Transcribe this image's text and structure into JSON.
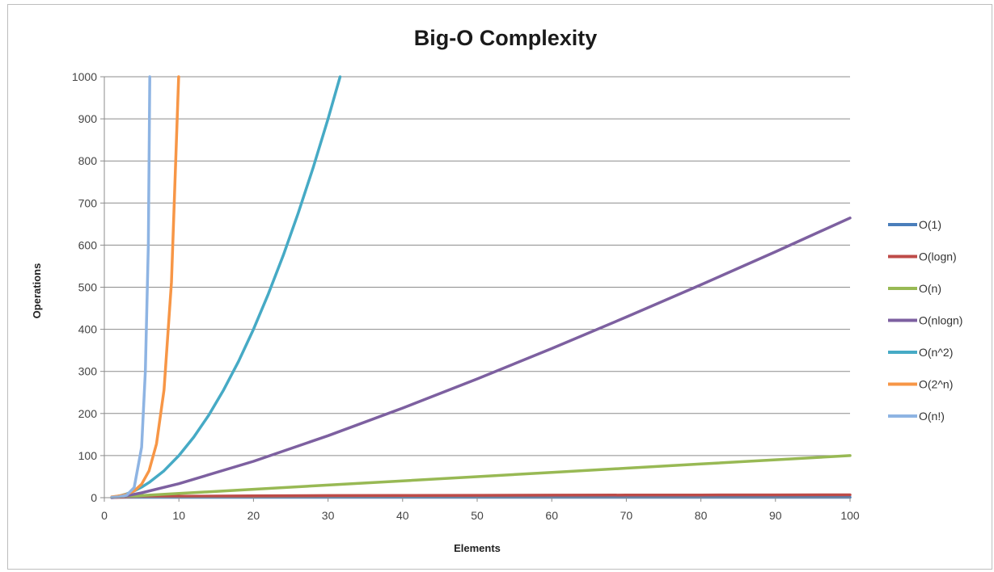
{
  "chart_data": {
    "type": "line",
    "title": "Big-O Complexity",
    "xlabel": "Elements",
    "ylabel": "Operations",
    "xlim": [
      0,
      100
    ],
    "ylim": [
      0,
      1000
    ],
    "x_ticks": [
      "0",
      "10",
      "20",
      "30",
      "40",
      "50",
      "60",
      "70",
      "80",
      "90",
      "100"
    ],
    "y_ticks": [
      "0",
      "100",
      "200",
      "300",
      "400",
      "500",
      "600",
      "700",
      "800",
      "900",
      "1000"
    ],
    "grid": "horizontal",
    "legend_position": "right",
    "series": [
      {
        "name": "O(1)",
        "color": "#4a7ebb",
        "x": [
          1,
          2,
          3,
          4,
          5,
          10,
          20,
          30,
          40,
          50,
          60,
          70,
          80,
          90,
          100
        ],
        "values": [
          1,
          1,
          1,
          1,
          1,
          1,
          1,
          1,
          1,
          1,
          1,
          1,
          1,
          1,
          1
        ]
      },
      {
        "name": "O(logn)",
        "color": "#be4b48",
        "x": [
          1,
          2,
          3,
          4,
          5,
          10,
          20,
          30,
          40,
          50,
          60,
          70,
          80,
          90,
          100
        ],
        "values": [
          0,
          1,
          1.58,
          2,
          2.32,
          3.32,
          4.32,
          4.91,
          5.32,
          5.64,
          5.91,
          6.13,
          6.32,
          6.49,
          6.64
        ]
      },
      {
        "name": "O(n)",
        "color": "#98b954",
        "x": [
          1,
          2,
          3,
          4,
          5,
          10,
          20,
          30,
          40,
          50,
          60,
          70,
          80,
          90,
          100
        ],
        "values": [
          1,
          2,
          3,
          4,
          5,
          10,
          20,
          30,
          40,
          50,
          60,
          70,
          80,
          90,
          100
        ]
      },
      {
        "name": "O(nlogn)",
        "color": "#7d60a0",
        "x": [
          1,
          2,
          3,
          4,
          5,
          10,
          20,
          30,
          40,
          50,
          60,
          70,
          80,
          90,
          100
        ],
        "values": [
          0,
          2,
          4.75,
          8,
          11.6,
          33.2,
          86.4,
          147.2,
          212.9,
          282.2,
          354.4,
          429.1,
          505.8,
          584.3,
          664.4
        ]
      },
      {
        "name": "O(n^2)",
        "color": "#46aac5",
        "x": [
          1,
          2,
          3,
          4,
          5,
          6,
          8,
          10,
          12,
          14,
          16,
          18,
          20,
          22,
          24,
          26,
          28,
          30,
          31.62
        ],
        "values": [
          1,
          4,
          9,
          16,
          25,
          36,
          64,
          100,
          144,
          196,
          256,
          324,
          400,
          484,
          576,
          676,
          784,
          900,
          1000
        ]
      },
      {
        "name": "O(2^n)",
        "color": "#f79646",
        "x": [
          1,
          2,
          3,
          4,
          5,
          6,
          7,
          8,
          9,
          9.97
        ],
        "values": [
          2,
          4,
          8,
          16,
          32,
          64,
          128,
          256,
          512,
          1000
        ]
      },
      {
        "name": "O(n!)",
        "color": "#8eb4e3",
        "x": [
          1,
          2,
          3,
          4,
          5,
          5.5,
          5.9,
          6.1
        ],
        "values": [
          1,
          2,
          6,
          24,
          120,
          300,
          600,
          1000
        ]
      }
    ]
  }
}
